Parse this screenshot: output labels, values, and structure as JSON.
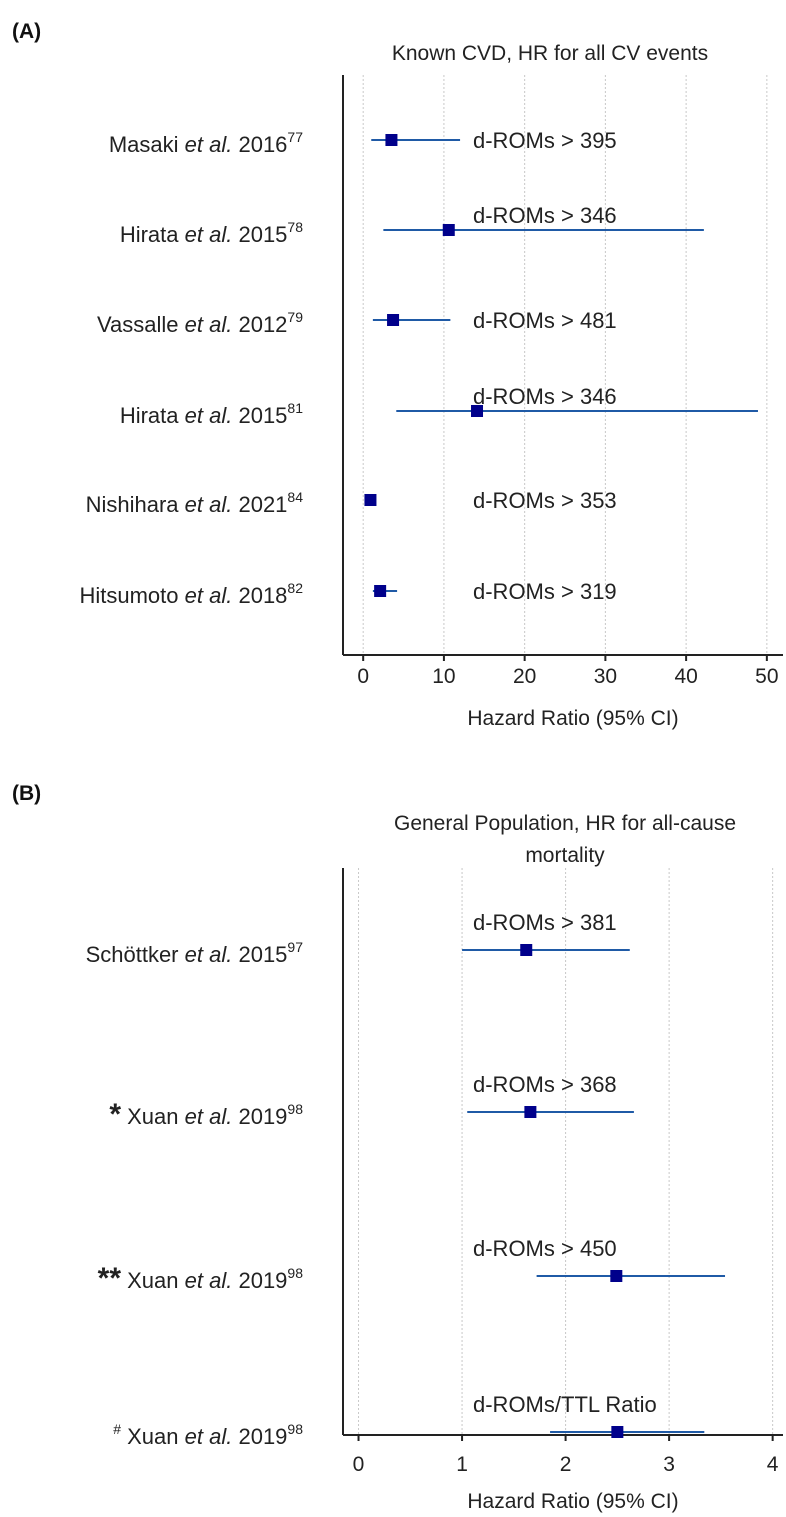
{
  "figure": {
    "panel_a_label": "(A)",
    "panel_b_label": "(B)"
  },
  "chart_data": [
    {
      "type": "forest",
      "panel": "(A)",
      "title": "Known CVD, HR for all CV events",
      "title_lines": [
        "Known CVD, HR for all CV events"
      ],
      "xlabel": "Hazard Ratio (95% CI)",
      "xlim": [
        -2.5,
        52
      ],
      "xticks": [
        0,
        10,
        20,
        30,
        40,
        50
      ],
      "grid": true,
      "studies": [
        {
          "prefix": "",
          "name": "Masaki",
          "etal": "et al.",
          "year": "2016",
          "ref": "77",
          "cutoff": "d-ROMs > 395",
          "hr": 3.5,
          "ci": [
            1.0,
            12.0
          ]
        },
        {
          "prefix": "",
          "name": "Hirata",
          "etal": "et al.",
          "year": "2015",
          "ref": "78",
          "cutoff": "d-ROMs > 346",
          "hr": 10.6,
          "ci": [
            2.5,
            42.2
          ]
        },
        {
          "prefix": "",
          "name": "Vassalle",
          "etal": "et al.",
          "year": "2012",
          "ref": "79",
          "cutoff": "d-ROMs > 481",
          "hr": 3.7,
          "ci": [
            1.2,
            10.8
          ]
        },
        {
          "prefix": "",
          "name": "Hirata",
          "etal": "et al.",
          "year": "2015",
          "ref": "81",
          "cutoff": "d-ROMs > 346",
          "hr": 14.1,
          "ci": [
            4.1,
            48.9
          ]
        },
        {
          "prefix": "",
          "name": "Nishihara",
          "etal": "et al.",
          "year": "2021",
          "ref": "84",
          "cutoff": "d-ROMs > 353",
          "hr": 0.9,
          "ci": [
            0.7,
            1.3
          ]
        },
        {
          "prefix": "",
          "name": "Hitsumoto",
          "etal": "et al.",
          "year": "2018",
          "ref": "82",
          "cutoff": "d-ROMs > 319",
          "hr": 2.1,
          "ci": [
            1.2,
            4.2
          ]
        }
      ]
    },
    {
      "type": "forest",
      "panel": "(B)",
      "title": "General Population, HR for all-cause mortality",
      "title_lines": [
        "General Population,  HR for all-cause",
        "mortality"
      ],
      "xlabel": "Hazard Ratio (95% CI)",
      "xlim": [
        -0.15,
        4.1
      ],
      "xticks": [
        0,
        1,
        2,
        3,
        4
      ],
      "grid": true,
      "studies": [
        {
          "prefix": "",
          "name": "Schöttker",
          "etal": "et al.",
          "year": "2015",
          "ref": "97",
          "cutoff": "d-ROMs > 381",
          "hr": 1.62,
          "ci": [
            1.0,
            2.62
          ]
        },
        {
          "prefix": "*",
          "name": "Xuan",
          "etal": "et al.",
          "year": "2019",
          "ref": "98",
          "cutoff": "d-ROMs > 368",
          "hr": 1.66,
          "ci": [
            1.05,
            2.66
          ]
        },
        {
          "prefix": "**",
          "name": "Xuan",
          "etal": "et al.",
          "year": "2019",
          "ref": "98",
          "cutoff": "d-ROMs > 450",
          "hr": 2.49,
          "ci": [
            1.72,
            3.54
          ]
        },
        {
          "prefix": "#",
          "name": "Xuan",
          "etal": "et al.",
          "year": "2019",
          "ref": "98",
          "cutoff": "d-ROMs/TTL Ratio",
          "hr": 2.5,
          "ci": [
            1.85,
            3.34
          ]
        }
      ]
    }
  ]
}
